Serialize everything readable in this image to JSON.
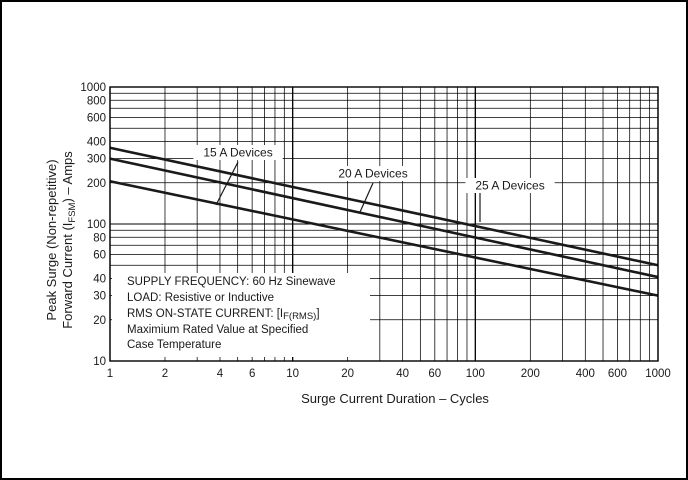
{
  "chart_data": {
    "type": "line",
    "title": "",
    "xlabel": "Surge Current Duration – Cycles",
    "ylabel_line1": "Peak Surge (Non-repetitive)",
    "ylabel_line2_parts": [
      "Forward Current (I",
      "FSM",
      ") – Amps"
    ],
    "x_scale": "log",
    "y_scale": "log",
    "xlim": [
      1,
      1000
    ],
    "ylim": [
      10,
      1000
    ],
    "grid": true,
    "x_ticks": [
      {
        "value": 1,
        "label": "1"
      },
      {
        "value": 2,
        "label": "2"
      },
      {
        "value": 4,
        "label": "4"
      },
      {
        "value": 6,
        "label": "6"
      },
      {
        "value": 10,
        "label": "10"
      },
      {
        "value": 20,
        "label": "20"
      },
      {
        "value": 40,
        "label": "40"
      },
      {
        "value": 60,
        "label": "60"
      },
      {
        "value": 100,
        "label": "100"
      },
      {
        "value": 200,
        "label": "200"
      },
      {
        "value": 400,
        "label": "400"
      },
      {
        "value": 600,
        "label": "600"
      },
      {
        "value": 1000,
        "label": "1000"
      }
    ],
    "y_ticks": [
      {
        "value": 10,
        "label": "10"
      },
      {
        "value": 20,
        "label": "20"
      },
      {
        "value": 30,
        "label": "30"
      },
      {
        "value": 40,
        "label": "40"
      },
      {
        "value": 60,
        "label": "60"
      },
      {
        "value": 80,
        "label": "80"
      },
      {
        "value": 100,
        "label": "100"
      },
      {
        "value": 200,
        "label": "200"
      },
      {
        "value": 300,
        "label": "300"
      },
      {
        "value": 400,
        "label": "400"
      },
      {
        "value": 600,
        "label": "600"
      },
      {
        "value": 800,
        "label": "800"
      },
      {
        "value": 1000,
        "label": "1000"
      }
    ],
    "series": [
      {
        "name": "25 A Devices",
        "x": [
          1,
          1000
        ],
        "y": [
          360,
          50
        ],
        "label_anchor": [
          110,
          110
        ]
      },
      {
        "name": "20 A Devices",
        "x": [
          1,
          1000
        ],
        "y": [
          300,
          41
        ],
        "label_anchor": [
          34,
          148
        ]
      },
      {
        "name": "15 A Devices",
        "x": [
          1,
          1000
        ],
        "y": [
          205,
          30
        ],
        "label_anchor": [
          4.1,
          145
        ]
      }
    ],
    "notes": [
      "SUPPLY FREQUENCY: 60 Hz Sinewave",
      "LOAD: Resistive or Inductive",
      "Maximium Rated Value at Specified",
      "Case Temperature"
    ],
    "note_rms_parts": [
      "RMS ON-STATE CURRENT: [I",
      "F(RMS)",
      "]"
    ]
  }
}
